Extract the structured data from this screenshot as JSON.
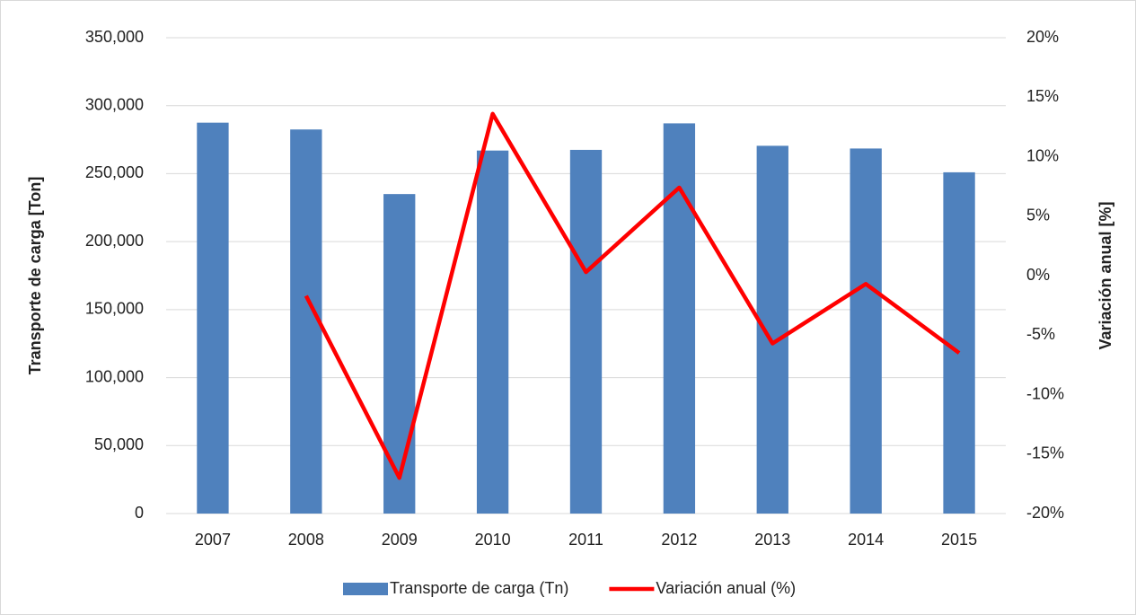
{
  "chart_data": {
    "type": "bar",
    "categories": [
      "2007",
      "2008",
      "2009",
      "2010",
      "2011",
      "2012",
      "2013",
      "2014",
      "2015"
    ],
    "y_label": "Transporte de carga [Ton]",
    "y2_label": "Variación anual [%]",
    "ylim": [
      0,
      350000
    ],
    "yticks": [
      0,
      {
        "value": 50000,
        "label": "50,000"
      },
      {
        "value": 100000,
        "label": "100,000"
      },
      {
        "value": 150000,
        "label": "150,000"
      },
      {
        "value": 200000,
        "label": "200,000"
      },
      {
        "value": 250000,
        "label": "250,000"
      },
      {
        "value": 300000,
        "label": "300,000"
      },
      {
        "value": 350000,
        "label": "350,000"
      }
    ],
    "y2lim": [
      -20,
      20
    ],
    "y2ticks": [
      {
        "value": -20,
        "label": "-20%"
      },
      {
        "value": -15,
        "label": "-15%"
      },
      {
        "value": -10,
        "label": "-10%"
      },
      {
        "value": -5,
        "label": "-5%"
      },
      {
        "value": 0,
        "label": "0%"
      },
      {
        "value": 5,
        "label": "5%"
      },
      {
        "value": 10,
        "label": "10%"
      },
      {
        "value": 15,
        "label": "15%"
      },
      {
        "value": 20,
        "label": "20%"
      }
    ],
    "grid": true,
    "legend": "bottom",
    "series": [
      {
        "name": "Transporte de carga (Tn)",
        "type": "bar",
        "color": "#4f81bd",
        "values": [
          287500,
          282500,
          235000,
          267000,
          267500,
          287000,
          270500,
          268500,
          251000
        ]
      },
      {
        "name": "Variación anual (%)",
        "type": "line",
        "axis": "y2",
        "color": "#ff0000",
        "values": [
          null,
          -1.7,
          -17,
          13.6,
          0.3,
          7.4,
          -5.7,
          -0.7,
          -6.5
        ]
      }
    ]
  }
}
